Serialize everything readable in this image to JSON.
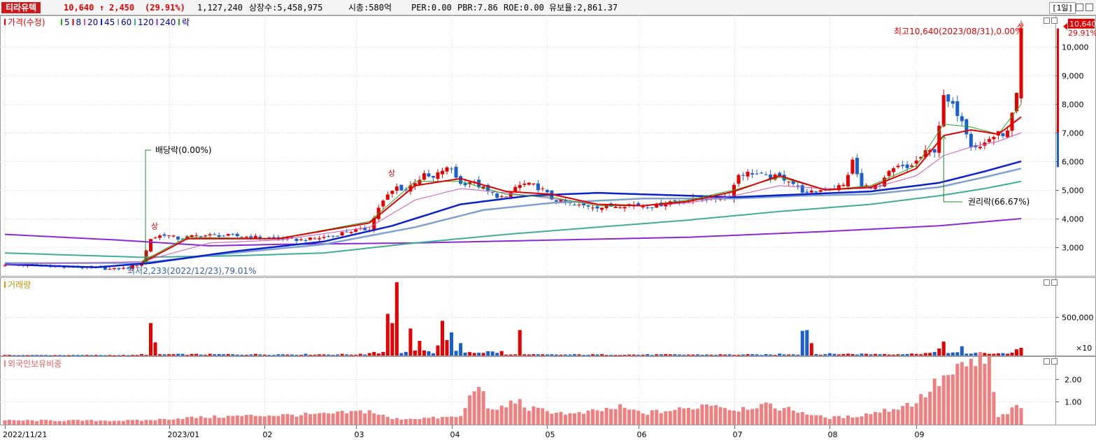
{
  "header": {
    "stock_name": "티라유텍",
    "price": "10,640",
    "change_arrow": "up-arrow-icon",
    "change": "2,450",
    "change_pct": "(29.91%)",
    "volume": "1,127,240",
    "listed_shares": "상장수:5,458,975",
    "market_cap": "시총:580억",
    "per": "PER:0.00",
    "pbr": "PBR:7.86",
    "roe": "ROE:0.00",
    "reserve_ratio": "유보율:2,861.37",
    "period": "[1일]"
  },
  "colors": {
    "up": "#e60000",
    "down": "#1a5fd0",
    "ma5": "#22aa22",
    "ma8": "#e00000",
    "ma20": "#cc55bb",
    "ma45": "#0a22cc",
    "ma60": "#7fa1cf",
    "ma120": "#3fae92",
    "ma240": "#8a2bd2",
    "foreign": "#f08080"
  },
  "chart_data": [
    {
      "type": "candlestick",
      "panel": "price",
      "legend": [
        {
          "label": "가격(수정)",
          "color": "#e60000"
        },
        {
          "label": "5",
          "color": "#22aa22"
        },
        {
          "label": "8",
          "color": "#e00000"
        },
        {
          "label": "20",
          "color": "#cc55bb"
        },
        {
          "label": "45",
          "color": "#0a22cc"
        },
        {
          "label": "60",
          "color": "#7fa1cf"
        },
        {
          "label": "120",
          "color": "#3fae92"
        },
        {
          "label": "240",
          "color": "#8a2bd2"
        },
        {
          "label": "락",
          "color": "#22aa22"
        }
      ],
      "x_tick_labels": [
        "2022/11/21",
        "2023/01",
        "02",
        "03",
        "04",
        "05",
        "06",
        "07",
        "08",
        "09"
      ],
      "y_tick_labels": [
        "3,000",
        "4,000",
        "5,000",
        "6,000",
        "7,000",
        "8,000",
        "9,000",
        "10,000"
      ],
      "y_ticks": [
        3000,
        4000,
        5000,
        6000,
        7000,
        8000,
        9000,
        10000
      ],
      "ylim": [
        2000,
        11100
      ],
      "last_price_label": "10,640",
      "last_change_label": "29.91%",
      "annotations": {
        "high": "최고10,640(2023/08/31),0.00%",
        "low": "최저2,233(2022/12/23),79.01%",
        "dividend": "배당락(0.00%)",
        "rights": "권리락(66.67%)",
        "limit_up": "상"
      },
      "price_path": [
        [
          0,
          2400
        ],
        [
          5,
          2380
        ],
        [
          10,
          2350
        ],
        [
          12,
          2310
        ],
        [
          15,
          2300
        ],
        [
          20,
          2290
        ],
        [
          23,
          2233
        ],
        [
          26,
          2260
        ],
        [
          28,
          2340
        ],
        [
          30,
          2450
        ],
        [
          32,
          3300
        ],
        [
          35,
          3450
        ],
        [
          38,
          3300
        ],
        [
          42,
          3400
        ],
        [
          46,
          3420
        ],
        [
          50,
          3400
        ],
        [
          55,
          3350
        ],
        [
          60,
          3300
        ],
        [
          65,
          3250
        ],
        [
          68,
          3300
        ],
        [
          72,
          3400
        ],
        [
          75,
          3550
        ],
        [
          78,
          3600
        ],
        [
          80,
          3650
        ],
        [
          82,
          4400
        ],
        [
          84,
          4800
        ],
        [
          86,
          5100
        ],
        [
          88,
          5000
        ],
        [
          90,
          5300
        ],
        [
          92,
          5500
        ],
        [
          94,
          5400
        ],
        [
          96,
          5700
        ],
        [
          98,
          5750
        ],
        [
          100,
          5200
        ],
        [
          102,
          5300
        ],
        [
          104,
          5150
        ],
        [
          106,
          4950
        ],
        [
          108,
          4800
        ],
        [
          110,
          4700
        ],
        [
          112,
          5100
        ],
        [
          114,
          5200
        ],
        [
          116,
          5150
        ],
        [
          118,
          5000
        ],
        [
          120,
          4700
        ],
        [
          122,
          4600
        ],
        [
          125,
          4450
        ],
        [
          128,
          4450
        ],
        [
          131,
          4400
        ],
        [
          134,
          4450
        ],
        [
          137,
          4500
        ],
        [
          140,
          4450
        ],
        [
          143,
          4450
        ],
        [
          146,
          4600
        ],
        [
          150,
          4650
        ],
        [
          153,
          4700
        ],
        [
          156,
          4700
        ],
        [
          159,
          4800
        ],
        [
          161,
          5550
        ],
        [
          164,
          5600
        ],
        [
          167,
          5450
        ],
        [
          170,
          5450
        ],
        [
          172,
          5350
        ],
        [
          174,
          5100
        ],
        [
          176,
          4850
        ],
        [
          178,
          4950
        ],
        [
          180,
          5050
        ],
        [
          182,
          5100
        ],
        [
          184,
          5150
        ],
        [
          186,
          6000
        ],
        [
          188,
          5100
        ],
        [
          190,
          5150
        ],
        [
          192,
          5100
        ],
        [
          194,
          5600
        ],
        [
          196,
          5800
        ],
        [
          198,
          5750
        ],
        [
          200,
          6000
        ],
        [
          202,
          6300
        ],
        [
          204,
          6400
        ],
        [
          206,
          8200
        ],
        [
          208,
          7900
        ],
        [
          210,
          7500
        ],
        [
          212,
          6600
        ],
        [
          214,
          6500
        ],
        [
          216,
          6800
        ],
        [
          218,
          6950
        ],
        [
          220,
          7000
        ],
        [
          222,
          8250
        ],
        [
          223,
          10640
        ]
      ],
      "ma_series": {
        "ma5": [
          [
            30,
            2500
          ],
          [
            40,
            3350
          ],
          [
            60,
            3300
          ],
          [
            80,
            3900
          ],
          [
            90,
            5300
          ],
          [
            100,
            5300
          ],
          [
            110,
            4850
          ],
          [
            120,
            4750
          ],
          [
            130,
            4450
          ],
          [
            140,
            4450
          ],
          [
            150,
            4650
          ],
          [
            160,
            5000
          ],
          [
            170,
            5450
          ],
          [
            180,
            5000
          ],
          [
            190,
            5150
          ],
          [
            200,
            5850
          ],
          [
            206,
            7300
          ],
          [
            212,
            7200
          ],
          [
            218,
            6950
          ],
          [
            223,
            8000
          ]
        ],
        "ma8": [
          [
            30,
            2450
          ],
          [
            40,
            3300
          ],
          [
            60,
            3300
          ],
          [
            80,
            3850
          ],
          [
            90,
            5150
          ],
          [
            100,
            5400
          ],
          [
            110,
            4950
          ],
          [
            120,
            4850
          ],
          [
            130,
            4500
          ],
          [
            140,
            4450
          ],
          [
            150,
            4600
          ],
          [
            160,
            4950
          ],
          [
            170,
            5500
          ],
          [
            180,
            5000
          ],
          [
            190,
            5100
          ],
          [
            200,
            5750
          ],
          [
            206,
            6900
          ],
          [
            212,
            7100
          ],
          [
            218,
            6950
          ],
          [
            223,
            7550
          ]
        ],
        "ma20": [
          [
            0,
            2400
          ],
          [
            30,
            2500
          ],
          [
            45,
            3150
          ],
          [
            60,
            3250
          ],
          [
            80,
            3700
          ],
          [
            90,
            4650
          ],
          [
            100,
            5050
          ],
          [
            110,
            4900
          ],
          [
            120,
            4700
          ],
          [
            130,
            4500
          ],
          [
            140,
            4450
          ],
          [
            150,
            4550
          ],
          [
            160,
            4800
          ],
          [
            170,
            5150
          ],
          [
            180,
            5050
          ],
          [
            190,
            5050
          ],
          [
            200,
            5500
          ],
          [
            206,
            6200
          ],
          [
            212,
            6500
          ],
          [
            218,
            6700
          ],
          [
            223,
            7000
          ]
        ],
        "ma45": [
          [
            0,
            2400
          ],
          [
            20,
            2300
          ],
          [
            32,
            2450
          ],
          [
            50,
            2850
          ],
          [
            70,
            3200
          ],
          [
            85,
            3750
          ],
          [
            100,
            4500
          ],
          [
            115,
            4800
          ],
          [
            130,
            4900
          ],
          [
            140,
            4850
          ],
          [
            160,
            4750
          ],
          [
            175,
            4850
          ],
          [
            190,
            4950
          ],
          [
            205,
            5250
          ],
          [
            215,
            5650
          ],
          [
            223,
            6000
          ]
        ],
        "ma60": [
          [
            0,
            2450
          ],
          [
            30,
            2450
          ],
          [
            50,
            2800
          ],
          [
            70,
            3100
          ],
          [
            90,
            3700
          ],
          [
            105,
            4300
          ],
          [
            120,
            4550
          ],
          [
            140,
            4700
          ],
          [
            160,
            4700
          ],
          [
            175,
            4800
          ],
          [
            190,
            4850
          ],
          [
            205,
            5100
          ],
          [
            215,
            5450
          ],
          [
            223,
            5750
          ]
        ],
        "ma120": [
          [
            0,
            2800
          ],
          [
            30,
            2650
          ],
          [
            50,
            2700
          ],
          [
            70,
            2800
          ],
          [
            90,
            3150
          ],
          [
            110,
            3450
          ],
          [
            130,
            3700
          ],
          [
            150,
            3950
          ],
          [
            170,
            4250
          ],
          [
            190,
            4500
          ],
          [
            205,
            4800
          ],
          [
            215,
            5050
          ],
          [
            223,
            5300
          ]
        ],
        "ma240": [
          [
            0,
            3450
          ],
          [
            25,
            3250
          ],
          [
            45,
            3050
          ],
          [
            60,
            3100
          ],
          [
            90,
            3150
          ],
          [
            120,
            3250
          ],
          [
            150,
            3350
          ],
          [
            180,
            3550
          ],
          [
            205,
            3750
          ],
          [
            223,
            4000
          ]
        ]
      }
    },
    {
      "type": "bar",
      "panel": "volume",
      "legend": [
        {
          "label": "거래량",
          "color": "#c8a000"
        }
      ],
      "y_tick_labels": [
        "500,000"
      ],
      "y_ticks": [
        500000
      ],
      "unit_label": "×10",
      "ylim": [
        0,
        960000
      ]
    },
    {
      "type": "bar",
      "panel": "foreign_ownership",
      "legend": [
        {
          "label": "외국인보유비중",
          "color": "#f08080"
        }
      ],
      "y_tick_labels": [
        "1.00",
        "2.00"
      ],
      "y_ticks": [
        1.0,
        2.0
      ],
      "ylim": [
        0,
        3.0
      ]
    }
  ]
}
